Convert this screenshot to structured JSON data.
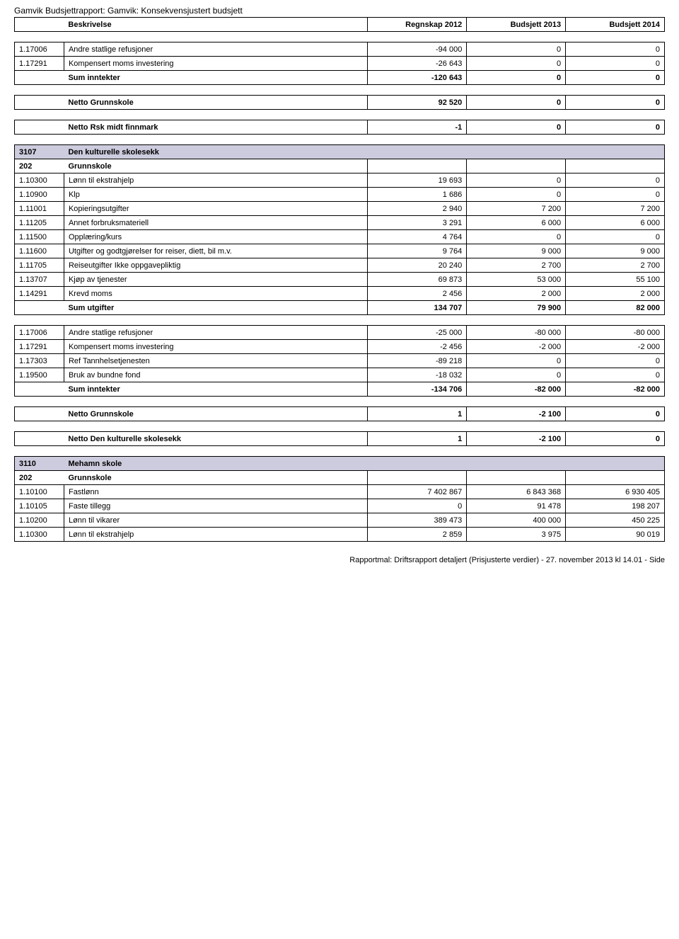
{
  "doc_header": "Gamvik Budsjettrapport: Gamvik: Konsekvensjustert budsjett",
  "columns": {
    "desc": "Beskrivelse",
    "c1": "Regnskap 2012",
    "c2": "Budsjett 2013",
    "c3": "Budsjett 2014"
  },
  "block1": [
    {
      "code": "1.17006",
      "desc": "Andre statlige refusjoner",
      "v1": "-94 000",
      "v2": "0",
      "v3": "0"
    },
    {
      "code": "1.17291",
      "desc": "Kompensert moms investering",
      "v1": "-26 643",
      "v2": "0",
      "v3": "0"
    },
    {
      "code": "",
      "desc": "Sum inntekter",
      "v1": "-120 643",
      "v2": "0",
      "v3": "0",
      "bold": true
    }
  ],
  "netto1": {
    "desc": "Netto Grunnskole",
    "v1": "92 520",
    "v2": "0",
    "v3": "0"
  },
  "netto2": {
    "desc": "Netto Rsk midt finnmark",
    "v1": "-1",
    "v2": "0",
    "v3": "0"
  },
  "section3107": {
    "code": "3107",
    "desc": "Den kulturelle skolesekk"
  },
  "section202a": {
    "code": "202",
    "desc": "Grunnskole"
  },
  "block3107": [
    {
      "code": "1.10300",
      "desc": "Lønn til ekstrahjelp",
      "v1": "19 693",
      "v2": "0",
      "v3": "0"
    },
    {
      "code": "1.10900",
      "desc": "Klp",
      "v1": "1 686",
      "v2": "0",
      "v3": "0"
    },
    {
      "code": "1.11001",
      "desc": "Kopieringsutgifter",
      "v1": "2 940",
      "v2": "7 200",
      "v3": "7 200"
    },
    {
      "code": "1.11205",
      "desc": "Annet forbruksmateriell",
      "v1": "3 291",
      "v2": "6 000",
      "v3": "6 000"
    },
    {
      "code": "1.11500",
      "desc": "Opplæring/kurs",
      "v1": "4 764",
      "v2": "0",
      "v3": "0"
    },
    {
      "code": "1.11600",
      "desc": "Utgifter og godtgjørelser for reiser, diett, bil m.v.",
      "v1": "9 764",
      "v2": "9 000",
      "v3": "9 000"
    },
    {
      "code": "1.11705",
      "desc": "Reiseutgifter Ikke oppgavepliktig",
      "v1": "20 240",
      "v2": "2 700",
      "v3": "2 700"
    },
    {
      "code": "1.13707",
      "desc": "Kjøp av tjenester",
      "v1": "69 873",
      "v2": "53 000",
      "v3": "55 100"
    },
    {
      "code": "1.14291",
      "desc": "Krevd moms",
      "v1": "2 456",
      "v2": "2 000",
      "v3": "2 000"
    },
    {
      "code": "",
      "desc": "Sum utgifter",
      "v1": "134 707",
      "v2": "79 900",
      "v3": "82 000",
      "bold": true
    }
  ],
  "block3107b": [
    {
      "code": "1.17006",
      "desc": "Andre statlige refusjoner",
      "v1": "-25 000",
      "v2": "-80 000",
      "v3": "-80 000"
    },
    {
      "code": "1.17291",
      "desc": "Kompensert moms investering",
      "v1": "-2 456",
      "v2": "-2 000",
      "v3": "-2 000"
    },
    {
      "code": "1.17303",
      "desc": "Ref Tannhelsetjenesten",
      "v1": "-89 218",
      "v2": "0",
      "v3": "0"
    },
    {
      "code": "1.19500",
      "desc": "Bruk av bundne fond",
      "v1": "-18 032",
      "v2": "0",
      "v3": "0"
    },
    {
      "code": "",
      "desc": "Sum inntekter",
      "v1": "-134 706",
      "v2": "-82 000",
      "v3": "-82 000",
      "bold": true
    }
  ],
  "netto3": {
    "desc": "Netto Grunnskole",
    "v1": "1",
    "v2": "-2 100",
    "v3": "0"
  },
  "netto4": {
    "desc": "Netto Den kulturelle skolesekk",
    "v1": "1",
    "v2": "-2 100",
    "v3": "0"
  },
  "section3110": {
    "code": "3110",
    "desc": "Mehamn skole"
  },
  "section202b": {
    "code": "202",
    "desc": "Grunnskole"
  },
  "block3110": [
    {
      "code": "1.10100",
      "desc": "Fastlønn",
      "v1": "7 402 867",
      "v2": "6 843 368",
      "v3": "6 930 405"
    },
    {
      "code": "1.10105",
      "desc": "Faste tillegg",
      "v1": "0",
      "v2": "91 478",
      "v3": "198 207"
    },
    {
      "code": "1.10200",
      "desc": "Lønn til vikarer",
      "v1": "389 473",
      "v2": "400 000",
      "v3": "450 225"
    },
    {
      "code": "1.10300",
      "desc": "Lønn til ekstrahjelp",
      "v1": "2 859",
      "v2": "3 975",
      "v3": "90 019"
    }
  ],
  "footer": "Rapportmal: Driftsrapport detaljert (Prisjusterte verdier) - 27. november 2013 kl 14.01 - Side"
}
